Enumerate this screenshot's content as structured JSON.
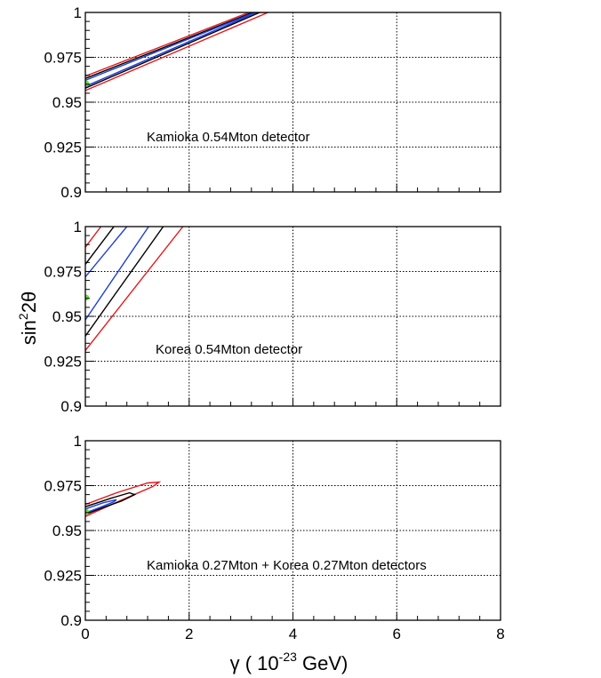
{
  "chart_data": [
    {
      "type": "line",
      "panel_label": "Kamioka 0.54Mton detector",
      "xlim": [
        0,
        8
      ],
      "ylim": [
        0.9,
        1
      ],
      "grid": true,
      "x_ticks": [
        0,
        2,
        4,
        6,
        8
      ],
      "y_ticks": [
        0.9,
        0.925,
        0.95,
        0.975,
        1
      ],
      "y_tick_labels": [
        "0.9",
        "0.925",
        "0.95",
        "0.975",
        "1"
      ],
      "best_fit": {
        "x": 0.0,
        "y": 0.9605,
        "color": "#66dd33"
      },
      "contours": [
        {
          "color": "#e31a1c",
          "closed": false,
          "points": [
            [
              0,
              0.9565
            ],
            [
              3.52,
              1.0
            ],
            [
              3.15,
              1.0
            ],
            [
              0,
              0.9645
            ]
          ]
        },
        {
          "color": "#000000",
          "closed": false,
          "points": [
            [
              0,
              0.9578
            ],
            [
              3.36,
              1.0
            ],
            [
              3.22,
              1.0
            ],
            [
              0,
              0.9632
            ]
          ]
        },
        {
          "color": "#1f3fd6",
          "closed": false,
          "points": [
            [
              0,
              0.9588
            ],
            [
              3.3,
              1.0
            ],
            [
              3.26,
              1.0
            ],
            [
              0,
              0.9622
            ]
          ]
        }
      ]
    },
    {
      "type": "line",
      "panel_label": "Korea 0.54Mton detector",
      "xlim": [
        0,
        8
      ],
      "ylim": [
        0.9,
        1
      ],
      "grid": true,
      "x_ticks": [
        0,
        2,
        4,
        6,
        8
      ],
      "y_ticks": [
        0.9,
        0.925,
        0.95,
        0.975,
        1
      ],
      "y_tick_labels": [
        "0.9",
        "0.925",
        "0.95",
        "0.975",
        "1"
      ],
      "best_fit": {
        "x": 0.0,
        "y": 0.9605,
        "color": "#66dd33"
      },
      "contours": [
        {
          "color": "#e31a1c",
          "closed": false,
          "points": [
            [
              0,
              0.931
            ],
            [
              1.88,
              1.0
            ]
          ]
        },
        {
          "color": "#e31a1c",
          "closed": false,
          "points": [
            [
              0,
              0.9885
            ],
            [
              0.3,
              1.0
            ]
          ]
        },
        {
          "color": "#000000",
          "closed": false,
          "points": [
            [
              0,
              0.939
            ],
            [
              1.5,
              1.0
            ]
          ]
        },
        {
          "color": "#000000",
          "closed": false,
          "points": [
            [
              0,
              0.979
            ],
            [
              0.55,
              1.0
            ]
          ]
        },
        {
          "color": "#1f3fd6",
          "closed": false,
          "points": [
            [
              0,
              0.948
            ],
            [
              1.22,
              1.0
            ]
          ]
        },
        {
          "color": "#1f3fd6",
          "closed": false,
          "points": [
            [
              0,
              0.972
            ],
            [
              0.8,
              1.0
            ]
          ]
        }
      ]
    },
    {
      "type": "line",
      "panel_label": "Kamioka 0.27Mton + Korea 0.27Mton detectors",
      "xlim": [
        0,
        8
      ],
      "ylim": [
        0.9,
        1
      ],
      "grid": true,
      "x_ticks": [
        0,
        2,
        4,
        6,
        8
      ],
      "x_tick_labels": [
        "0",
        "2",
        "4",
        "6",
        "8"
      ],
      "y_ticks": [
        0.9,
        0.925,
        0.95,
        0.975,
        1
      ],
      "y_tick_labels": [
        "0.9",
        "0.925",
        "0.95",
        "0.975",
        "1"
      ],
      "best_fit": {
        "x": 0.0,
        "y": 0.9605,
        "color": "#66dd33"
      },
      "contours": [
        {
          "color": "#e31a1c",
          "closed": false,
          "points": [
            [
              0,
              0.9645
            ],
            [
              0.6,
              0.971
            ],
            [
              1.2,
              0.9765
            ],
            [
              1.42,
              0.977
            ],
            [
              1.3,
              0.9745
            ],
            [
              0.7,
              0.967
            ],
            [
              0.2,
              0.9605
            ],
            [
              0,
              0.9578
            ]
          ]
        },
        {
          "color": "#000000",
          "closed": false,
          "points": [
            [
              0,
              0.9632
            ],
            [
              0.5,
              0.968
            ],
            [
              0.85,
              0.971
            ],
            [
              0.95,
              0.97
            ],
            [
              0.7,
              0.9665
            ],
            [
              0.25,
              0.9618
            ],
            [
              0,
              0.959
            ]
          ]
        },
        {
          "color": "#1f3fd6",
          "closed": false,
          "points": [
            [
              0,
              0.962
            ],
            [
              0.35,
              0.9655
            ],
            [
              0.6,
              0.9672
            ],
            [
              0.55,
              0.966
            ],
            [
              0.3,
              0.963
            ],
            [
              0,
              0.9598
            ]
          ]
        }
      ]
    }
  ],
  "axis_titles": {
    "y": {
      "base": "sin",
      "sup": "2",
      "rest": "2θ"
    },
    "x": {
      "pre": "γ ( 10",
      "sup": "-23",
      "post": " GeV)"
    }
  }
}
